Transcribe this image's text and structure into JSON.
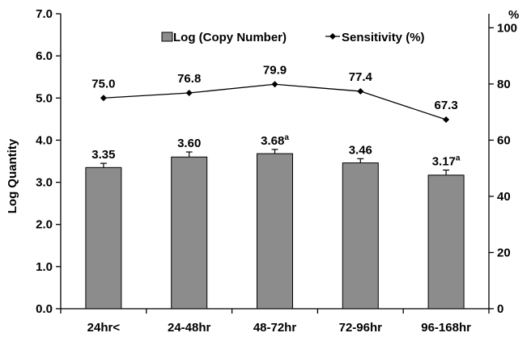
{
  "chart_data": {
    "type": "bar",
    "categories": [
      "24hr<",
      "24-48hr",
      "48-72hr",
      "72-96hr",
      "96-168hr"
    ],
    "series": [
      {
        "name": "Log (Copy Number)",
        "type": "bar",
        "axis": "left",
        "values": [
          3.35,
          3.6,
          3.68,
          3.46,
          3.17
        ],
        "labels": [
          "3.35",
          "3.60",
          "3.68",
          "3.46",
          "3.17"
        ],
        "superscripts": [
          "",
          "",
          "a",
          "",
          "a"
        ],
        "error": [
          0.1,
          0.12,
          0.1,
          0.1,
          0.12
        ],
        "color": "#8c8c8c"
      },
      {
        "name": "Sensitivity (%)",
        "type": "line",
        "axis": "right",
        "values": [
          75.0,
          76.8,
          79.9,
          77.4,
          67.3
        ],
        "labels": [
          "75.0",
          "76.8",
          "79.9",
          "77.4",
          "67.3"
        ],
        "color": "#000000"
      }
    ],
    "ylabel": "Log  Quantity",
    "ylim": [
      0,
      7
    ],
    "yticks": [
      "0.0",
      "1.0",
      "2.0",
      "3.0",
      "4.0",
      "5.0",
      "6.0",
      "7.0"
    ],
    "y2label": "%",
    "y2lim": [
      0,
      105
    ],
    "y2ticks": [
      "0",
      "20",
      "40",
      "60",
      "80",
      "100"
    ],
    "legend": "top-right",
    "grid": false
  }
}
